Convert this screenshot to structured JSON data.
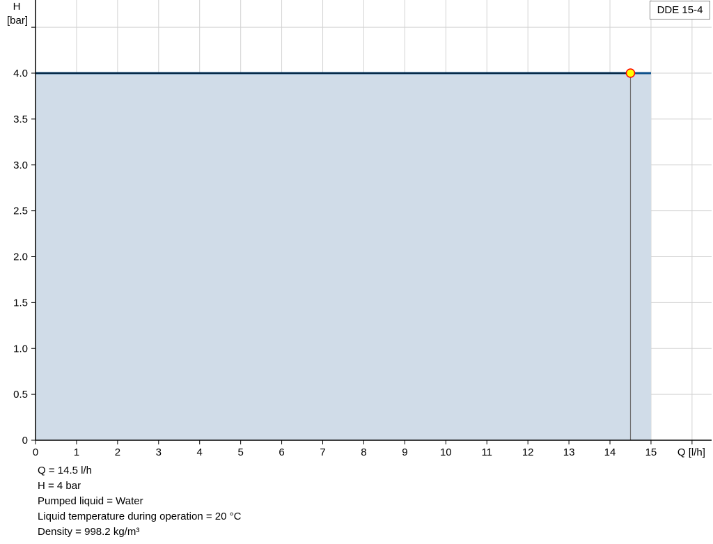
{
  "chart_data": {
    "type": "area",
    "xlabel": "Q [l/h]",
    "ylabel_line1": "H",
    "ylabel_line2": "[bar]",
    "xlim": [
      0,
      16
    ],
    "ylim": [
      0,
      4.5
    ],
    "xticks": [
      0,
      1,
      2,
      3,
      4,
      5,
      6,
      7,
      8,
      9,
      10,
      11,
      12,
      13,
      14,
      15
    ],
    "yticks": [
      "0",
      "0.5",
      "1.0",
      "1.5",
      "2.0",
      "2.5",
      "3.0",
      "3.5",
      "4.0"
    ],
    "grid": true,
    "legend_placement": "top-right",
    "series": [
      {
        "name": "DDE 15-4",
        "x": [
          0,
          15
        ],
        "y": [
          4.0,
          4.0
        ],
        "color": "#0b4f8a",
        "fill": "#d0dce8"
      }
    ],
    "operating_point": {
      "x": 14.5,
      "y": 4.0,
      "fill": "#ffff00",
      "stroke": "#ff0000"
    }
  },
  "info": [
    "Q = 14.5 l/h",
    "H = 4 bar",
    "Pumped liquid = Water",
    "Liquid temperature during operation = 20 °C",
    "Density = 998.2 kg/m³"
  ]
}
